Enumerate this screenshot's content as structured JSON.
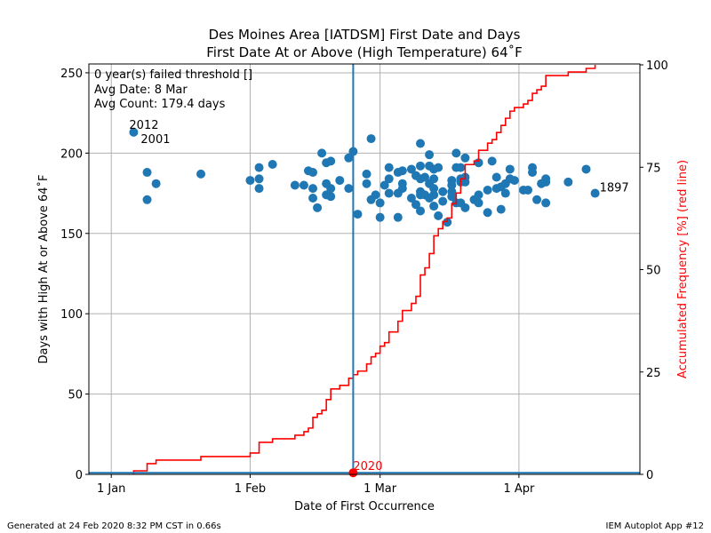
{
  "chart_data": {
    "type": "scatter",
    "title": "Des Moines Area [IATDSM] First Date and Days",
    "subtitle": "First Date At or Above (High Temperature) 64˚F",
    "xlabel": "Date of First Occurrence",
    "ylabel": "Days with High At or Above 64˚F",
    "y2label": "Accumulated Frequency [%] (red line)",
    "x_units": "days since 1 Jan",
    "xlim": [
      -5,
      118
    ],
    "ylim": [
      0,
      255.5
    ],
    "y2lim": [
      0,
      100
    ],
    "xticks": [
      {
        "d": 0,
        "label": "1 Jan"
      },
      {
        "d": 31,
        "label": "1 Feb"
      },
      {
        "d": 60,
        "label": "1 Mar"
      },
      {
        "d": 91,
        "label": "1 Apr"
      }
    ],
    "yticks": [
      0,
      50,
      100,
      150,
      200,
      250
    ],
    "y2ticks": [
      0,
      25,
      50,
      75,
      100
    ],
    "grid": true,
    "annotation_lines": [
      "0 year(s) failed threshold []",
      "Avg Date: 8 Mar",
      "Avg Count: 179.4 days"
    ],
    "point_color": "#1f77b4",
    "line_color": "#ff0000",
    "current": {
      "label": "2020",
      "d": 54,
      "value": 1
    },
    "labeled_points": [
      {
        "label": "2012",
        "d": 5,
        "value": 213
      },
      {
        "label": "2001",
        "d": 5,
        "value": 213
      },
      {
        "label": "1897",
        "d": 108,
        "value": 175
      }
    ],
    "points": [
      [
        5,
        213
      ],
      [
        8,
        188
      ],
      [
        8,
        171
      ],
      [
        10,
        181
      ],
      [
        20,
        187
      ],
      [
        31,
        183
      ],
      [
        33,
        191
      ],
      [
        33,
        184
      ],
      [
        33,
        178
      ],
      [
        36,
        193
      ],
      [
        41,
        180
      ],
      [
        43,
        180
      ],
      [
        44,
        189
      ],
      [
        45,
        188
      ],
      [
        45,
        178
      ],
      [
        45,
        172
      ],
      [
        46,
        166
      ],
      [
        47,
        200
      ],
      [
        48,
        194
      ],
      [
        48,
        181
      ],
      [
        49,
        195
      ],
      [
        49,
        178
      ],
      [
        49,
        173
      ],
      [
        48,
        174
      ],
      [
        51,
        183
      ],
      [
        53,
        178
      ],
      [
        53,
        197
      ],
      [
        54,
        201
      ],
      [
        55,
        162
      ],
      [
        57,
        187
      ],
      [
        57,
        181
      ],
      [
        58,
        209
      ],
      [
        58,
        171
      ],
      [
        59,
        174
      ],
      [
        60,
        169
      ],
      [
        60,
        160
      ],
      [
        61,
        180
      ],
      [
        62,
        191
      ],
      [
        62,
        184
      ],
      [
        62,
        175
      ],
      [
        64,
        188
      ],
      [
        64,
        175
      ],
      [
        64,
        160
      ],
      [
        65,
        189
      ],
      [
        65,
        181
      ],
      [
        65,
        178
      ],
      [
        67,
        190
      ],
      [
        67,
        172
      ],
      [
        68,
        186
      ],
      [
        68,
        168
      ],
      [
        69,
        206
      ],
      [
        69,
        192
      ],
      [
        69,
        184
      ],
      [
        69,
        176
      ],
      [
        69,
        174
      ],
      [
        69,
        164
      ],
      [
        70,
        185
      ],
      [
        70,
        174
      ],
      [
        71,
        199
      ],
      [
        71,
        192
      ],
      [
        71,
        181
      ],
      [
        71,
        172
      ],
      [
        72,
        190
      ],
      [
        72,
        184
      ],
      [
        72,
        178
      ],
      [
        72,
        174
      ],
      [
        72,
        167
      ],
      [
        73,
        191
      ],
      [
        73,
        161
      ],
      [
        74,
        176
      ],
      [
        74,
        170
      ],
      [
        75,
        157
      ],
      [
        76,
        183
      ],
      [
        76,
        180
      ],
      [
        76,
        176
      ],
      [
        76,
        173
      ],
      [
        77,
        200
      ],
      [
        77,
        191
      ],
      [
        77,
        169
      ],
      [
        78,
        191
      ],
      [
        78,
        184
      ],
      [
        78,
        182
      ],
      [
        78,
        169
      ],
      [
        79,
        197
      ],
      [
        79,
        185
      ],
      [
        79,
        182
      ],
      [
        79,
        166
      ],
      [
        81,
        171
      ],
      [
        82,
        174
      ],
      [
        82,
        169
      ],
      [
        82,
        194
      ],
      [
        84,
        163
      ],
      [
        84,
        177
      ],
      [
        85,
        195
      ],
      [
        86,
        185
      ],
      [
        86,
        178
      ],
      [
        87,
        165
      ],
      [
        87,
        179
      ],
      [
        88,
        181
      ],
      [
        88,
        175
      ],
      [
        89,
        190
      ],
      [
        89,
        184
      ],
      [
        90,
        183
      ],
      [
        92,
        177
      ],
      [
        93,
        177
      ],
      [
        94,
        191
      ],
      [
        94,
        188
      ],
      [
        95,
        171
      ],
      [
        96,
        181
      ],
      [
        97,
        184
      ],
      [
        97,
        182
      ],
      [
        97,
        169
      ],
      [
        102,
        182
      ],
      [
        106,
        190
      ],
      [
        108,
        175
      ]
    ]
  },
  "footer": {
    "left": "Generated at 24 Feb 2020 8:32 PM CST in 0.66s",
    "right": "IEM Autoplot App #12"
  }
}
